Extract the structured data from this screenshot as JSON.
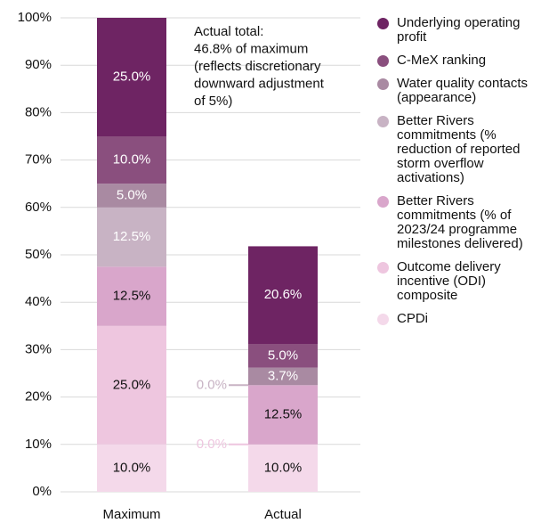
{
  "chart_data": {
    "type": "stacked_bar",
    "categories": [
      "Maximum",
      "Actual"
    ],
    "series": [
      {
        "name": "CPDi",
        "color": "#f4d9ea",
        "label_color": "#111111",
        "values": [
          10,
          10
        ],
        "value_labels": [
          "10.0%",
          "10.0%"
        ]
      },
      {
        "name": "Outcome delivery incentive (ODI) composite",
        "color": "#eec6df",
        "label_color": "#111111",
        "values": [
          25,
          0
        ],
        "value_labels": [
          "25.0%",
          "0.0%"
        ]
      },
      {
        "name": "Better Rivers commitments (% of 2023/24 programme milestones delivered)",
        "color": "#d9a6cb",
        "label_color": "#111111",
        "values": [
          12.5,
          12.5
        ],
        "value_labels": [
          "12.5%",
          "12.5%"
        ]
      },
      {
        "name": "Better Rivers commitments (% reduction of reported storm overflow activations)",
        "color": "#c8b3c4",
        "label_color": "#ffffff",
        "values": [
          12.5,
          0
        ],
        "value_labels": [
          "12.5%",
          "0.0%"
        ]
      },
      {
        "name": "Water quality contacts (appearance)",
        "color": "#a98aa2",
        "label_color": "#ffffff",
        "values": [
          5,
          3.7
        ],
        "value_labels": [
          "5.0%",
          "3.7%"
        ]
      },
      {
        "name": "C-MeX ranking",
        "color": "#8a4f7e",
        "label_color": "#ffffff",
        "values": [
          10,
          5
        ],
        "value_labels": [
          "10.0%",
          "5.0%"
        ]
      },
      {
        "name": "Underlying operating profit",
        "color": "#6e2463",
        "label_color": "#ffffff",
        "values": [
          25,
          20.6
        ],
        "value_labels": [
          "25.0%",
          "20.6%"
        ]
      }
    ],
    "annotation": [
      "Actual total:",
      "46.8% of maximum",
      "(reflects discretionary",
      "downward adjustment",
      "of 5%)"
    ],
    "ylim": [
      0,
      100
    ],
    "yticks": [
      {
        "value": 0,
        "label": "0%"
      },
      {
        "value": 10,
        "label": "10%"
      },
      {
        "value": 20,
        "label": "20%"
      },
      {
        "value": 30,
        "label": "30%"
      },
      {
        "value": 40,
        "label": "40%"
      },
      {
        "value": 50,
        "label": "50%"
      },
      {
        "value": 60,
        "label": "60%"
      },
      {
        "value": 70,
        "label": "70%"
      },
      {
        "value": 80,
        "label": "80%"
      },
      {
        "value": 90,
        "label": "90%"
      },
      {
        "value": 100,
        "label": "100%"
      }
    ],
    "grid": true,
    "legend": "right"
  }
}
